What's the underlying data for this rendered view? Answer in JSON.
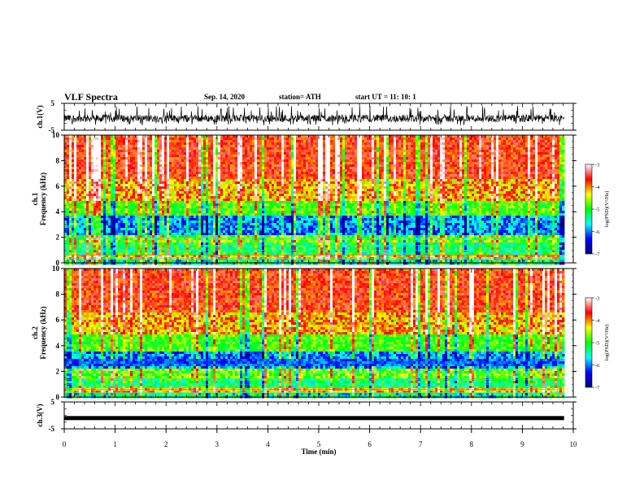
{
  "header": {
    "title": "VLF Spectra",
    "date": "Sep. 14, 2020",
    "station": "station= ATH",
    "start": "start  UT  =   11: 10: 1"
  },
  "chart_data": [
    {
      "type": "line",
      "panel": "ch1-waveform",
      "ylabel": "ch.1(V)",
      "ylim": [
        -5,
        5
      ],
      "yticks": [
        "5",
        "-5"
      ],
      "x_range_min": [
        0,
        9.82
      ],
      "description_level": "noisy waveform, mostly between -2 and 1 V with spikes to about +4 V"
    },
    {
      "type": "heatmap",
      "panel": "ch1-spectrogram",
      "ylabel": "ch.1\nFrequency (kHz)",
      "ylabel_line1": "ch.1",
      "ylabel_line2": "Frequency (kHz)",
      "ylim": [
        0,
        10
      ],
      "yticks": [
        "0",
        "2",
        "4",
        "6",
        "8",
        "10"
      ],
      "x_range_min": [
        0,
        9.82
      ],
      "colorbar": {
        "label": "log(PSD)(V²/Hz)",
        "range": [
          -7,
          -3
        ],
        "ticks": [
          "-3",
          "-4",
          "-5",
          "-6",
          "-7"
        ],
        "colormap": [
          "#000080",
          "#0000ff",
          "#00ffff",
          "#00ff00",
          "#ffff00",
          "#ff0000",
          "#ffffff"
        ]
      }
    },
    {
      "type": "heatmap",
      "panel": "ch2-spectrogram",
      "ylabel": "ch.2\nFrequency (kHz)",
      "ylabel_line1": "ch.2",
      "ylabel_line2": "Frequency (kHz)",
      "ylim": [
        0,
        10
      ],
      "yticks": [
        "0",
        "2",
        "4",
        "6",
        "8",
        "10"
      ],
      "x_range_min": [
        0,
        9.82
      ],
      "colorbar": {
        "label": "log(PSD)(V²/Hz)",
        "range": [
          -7,
          -3
        ],
        "ticks": [
          "-3",
          "-4",
          "-5",
          "-6",
          "-7"
        ],
        "colormap": [
          "#000080",
          "#0000ff",
          "#00ffff",
          "#00ff00",
          "#ffff00",
          "#ff0000",
          "#ffffff"
        ]
      }
    },
    {
      "type": "line",
      "panel": "ch3-waveform",
      "ylabel": "ch.3(V)",
      "ylim": [
        -5,
        5
      ],
      "yticks": [
        "5",
        "-5"
      ],
      "x_range_min": [
        0,
        9.82
      ],
      "level": -1
    }
  ],
  "x_axis": {
    "label": "Time (min)",
    "range": [
      0,
      10
    ],
    "ticks": [
      "0",
      "1",
      "2",
      "3",
      "4",
      "5",
      "6",
      "7",
      "8",
      "9",
      "10"
    ]
  }
}
